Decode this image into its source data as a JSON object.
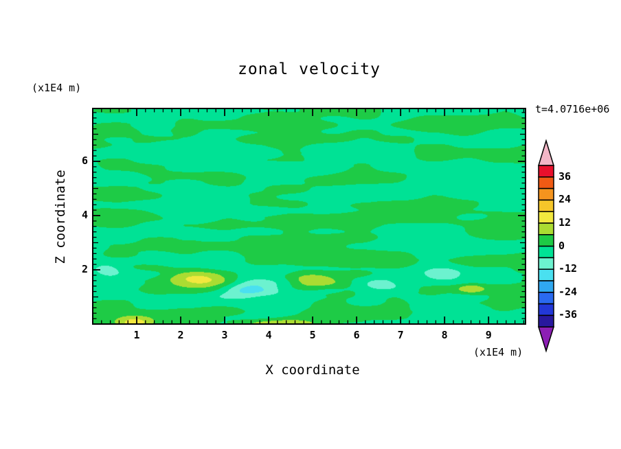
{
  "title": "zonal velocity",
  "annotations": {
    "time": "t=4.0716e+06",
    "y_units": "(x1E4 m)",
    "x_units": "(x1E4 m)"
  },
  "axes": {
    "x_label": "X coordinate",
    "y_label": "Z coordinate"
  },
  "chart_data": {
    "type": "heatmap",
    "subtype": "filled-contour",
    "title": "zonal velocity",
    "xlabel": "X coordinate",
    "ylabel": "Z coordinate",
    "x_units_note": "(x1E4 m)",
    "y_units_note": "(x1E4 m)",
    "time_annotation": "t=4.0716e+06",
    "xlim": [
      0,
      9.84
    ],
    "ylim": [
      0,
      7.95
    ],
    "x_ticks": [
      1,
      2,
      3,
      4,
      5,
      6,
      7,
      8,
      9
    ],
    "y_ticks": [
      2,
      4,
      6
    ],
    "minor_tick_step": 0.2,
    "contour_interval": 6,
    "levels": [
      -42,
      -36,
      -30,
      -24,
      -18,
      -12,
      -6,
      0,
      6,
      12,
      18,
      24,
      30,
      36,
      42
    ],
    "colorbar": {
      "tick_labels": [
        "36",
        "24",
        "12",
        "0",
        "-12",
        "-24",
        "-36"
      ],
      "segment_colors_top_to_bottom": [
        "#e8102c",
        "#f05a14",
        "#f5941e",
        "#f5c62a",
        "#f2e83e",
        "#abdc32",
        "#1ecb46",
        "#00e295",
        "#6cf2cf",
        "#4ae0f0",
        "#30a8f0",
        "#2a6af0",
        "#2238d8",
        "#28189e"
      ],
      "over_arrow_color": "#f2b6c6",
      "under_arrow_color": "#8c1fb4"
    },
    "field": {
      "dominant_band_colors": {
        "level_neg6_to_0": "#00e295",
        "level_0_to_6": "#1ecb46"
      },
      "description": "horizontal streaky bands alternating between the 0..6 and -6..0 contour levels over the whole domain; isolated maxima (yellow, 12..18) and minima (cyan, -18..-12) concentrated below z=2",
      "features": [
        {
          "x": 2.35,
          "z": 1.65,
          "amp": 14,
          "sx": 0.65,
          "sz": 0.3
        },
        {
          "x": 4.95,
          "z": 1.6,
          "amp": 13,
          "sx": 0.55,
          "sz": 0.28
        },
        {
          "x": 0.95,
          "z": 0.05,
          "amp": 15,
          "sx": 0.45,
          "sz": 0.22
        },
        {
          "x": 4.4,
          "z": 0.02,
          "amp": 12,
          "sx": 0.85,
          "sz": 0.18
        },
        {
          "x": 8.6,
          "z": 1.3,
          "amp": 9,
          "sx": 0.3,
          "sz": 0.18
        },
        {
          "x": 3.55,
          "z": 1.25,
          "amp": -12,
          "sx": 0.55,
          "sz": 0.28
        },
        {
          "x": 6.55,
          "z": 1.45,
          "amp": -11,
          "sx": 0.6,
          "sz": 0.28
        },
        {
          "x": 7.95,
          "z": 1.85,
          "amp": -9,
          "sx": 0.45,
          "sz": 0.22
        },
        {
          "x": 0.3,
          "z": 2.0,
          "amp": -8,
          "sx": 0.35,
          "sz": 0.25
        }
      ]
    }
  }
}
